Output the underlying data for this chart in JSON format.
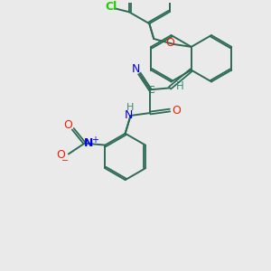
{
  "background_color": "#eaeaea",
  "bond_color": "#2d6b55",
  "atom_colors": {
    "H": "#3a8a7a",
    "N": "#0000ee",
    "O": "#ee2200",
    "Cl": "#22cc00",
    "C": "#2d6b55"
  },
  "figsize": [
    3.0,
    3.0
  ],
  "dpi": 100
}
